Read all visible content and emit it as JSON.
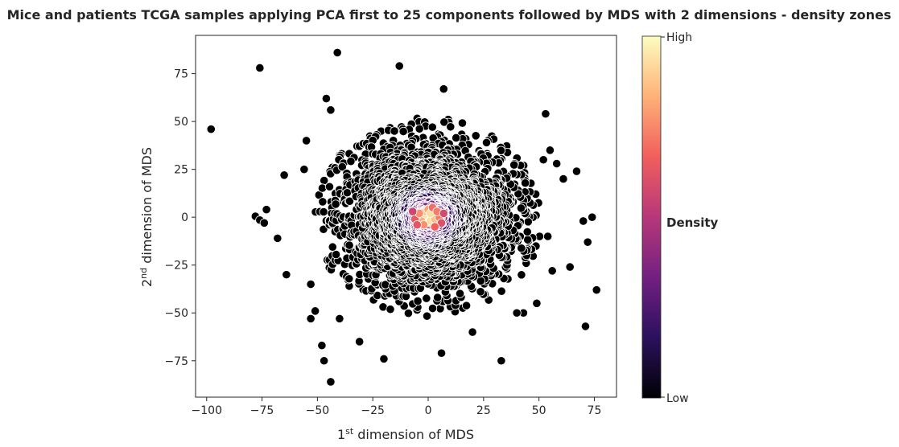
{
  "chart_data": {
    "type": "scatter",
    "title": "Mice and patients TCGA samples applying PCA first to 25 components followed by MDS with 2 dimensions - density zones",
    "xlabel_prefix": "1",
    "xlabel_sup": "st",
    "xlabel_rest": " dimension of MDS",
    "ylabel_prefix": "2",
    "ylabel_sup": "nd",
    "ylabel_rest": " dimension of MDS",
    "xlim": [
      -105,
      85
    ],
    "ylim": [
      -94,
      95
    ],
    "xticks": [
      -100,
      -75,
      -50,
      -25,
      0,
      25,
      50,
      75
    ],
    "xtick_labels": [
      "−100",
      "−75",
      "−50",
      "−25",
      "0",
      "25",
      "50",
      "75"
    ],
    "yticks": [
      -75,
      -50,
      -25,
      0,
      25,
      50,
      75
    ],
    "ytick_labels": [
      "−75",
      "−50",
      "−25",
      "0",
      "25",
      "50",
      "75"
    ],
    "grid": false,
    "colorbar": {
      "label": "Density",
      "tick_high": "High",
      "tick_low": "Low",
      "colormap": "magma",
      "stops": [
        "#000004",
        "#2c115f",
        "#721f81",
        "#b73779",
        "#f1605d",
        "#feb078",
        "#fcfdbf"
      ]
    },
    "marker_edge_color": "#ffffff",
    "outlier_points": [
      [
        -98,
        46
      ],
      [
        -76,
        78
      ],
      [
        -41,
        86
      ],
      [
        -13,
        79
      ],
      [
        7,
        67
      ],
      [
        -46,
        62
      ],
      [
        -44,
        56
      ],
      [
        53,
        54
      ],
      [
        -78,
        0.5
      ],
      [
        -76,
        -1.5
      ],
      [
        -74,
        -3
      ],
      [
        -73,
        4
      ],
      [
        -68,
        -11
      ],
      [
        -65,
        22
      ],
      [
        -64,
        -30
      ],
      [
        -55,
        40
      ],
      [
        -56,
        25
      ],
      [
        -53,
        -35
      ],
      [
        -53,
        -53
      ],
      [
        -51,
        -49
      ],
      [
        -48,
        -67
      ],
      [
        -47,
        -75
      ],
      [
        -44,
        -86
      ],
      [
        -40,
        -53
      ],
      [
        -31,
        -65
      ],
      [
        -20,
        -74
      ],
      [
        6,
        -71
      ],
      [
        20,
        -60
      ],
      [
        33,
        -75
      ],
      [
        71,
        -57
      ],
      [
        76,
        -38
      ],
      [
        72,
        -13
      ],
      [
        74,
        0
      ],
      [
        70,
        -2
      ],
      [
        67,
        24
      ],
      [
        61,
        20
      ],
      [
        58,
        28
      ],
      [
        55,
        35
      ],
      [
        52,
        30
      ],
      [
        64,
        -26
      ],
      [
        56,
        -28
      ],
      [
        54,
        -10
      ],
      [
        49,
        -45
      ],
      [
        43,
        -50
      ],
      [
        40,
        -50
      ]
    ],
    "cluster": {
      "center": [
        0,
        0
      ],
      "spread_sd_x": 19,
      "spread_sd_y": 18,
      "max_radius": 52,
      "approx_points": 3000
    },
    "density_core": [
      [
        0,
        0
      ],
      [
        2,
        1
      ],
      [
        -2,
        1
      ],
      [
        1,
        -2
      ],
      [
        -1,
        3
      ],
      [
        3,
        -1
      ],
      [
        -3,
        -2
      ],
      [
        -5,
        1
      ],
      [
        -6,
        -1
      ],
      [
        0,
        4
      ],
      [
        1,
        2
      ],
      [
        5,
        0
      ],
      [
        -4,
        2
      ],
      [
        2,
        5
      ],
      [
        -2,
        -4
      ],
      [
        4,
        3
      ],
      [
        -7,
        3
      ],
      [
        6,
        -3
      ],
      [
        3,
        -5
      ],
      [
        -5,
        -4
      ],
      [
        7,
        2
      ]
    ]
  }
}
